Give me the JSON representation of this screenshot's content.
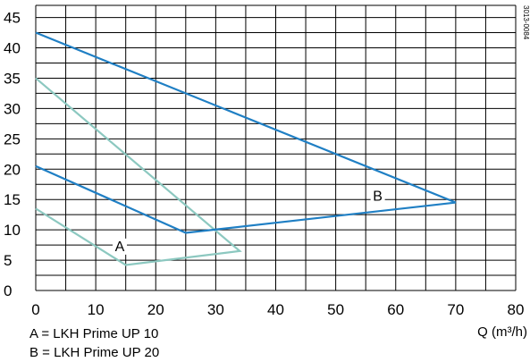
{
  "chart_data": {
    "type": "line",
    "xlabel": "Q (m³/h)",
    "ylabel": "",
    "xlim": [
      0,
      80
    ],
    "ylim": [
      0,
      47
    ],
    "x_ticks": [
      "0",
      "10",
      "20",
      "30",
      "40",
      "50",
      "60",
      "70",
      "80"
    ],
    "y_ticks": [
      "0",
      "5",
      "10",
      "15",
      "20",
      "25",
      "30",
      "35",
      "40",
      "45"
    ],
    "grid": true,
    "legend": [
      "A = LKH Prime UP 10",
      "B = LKH Prime UP 20"
    ],
    "code": "3013-0084",
    "colors": {
      "A": "#8cc8c0",
      "B": "#1f7fc4",
      "grid": "#000000"
    },
    "series": [
      {
        "name": "A",
        "points": [
          [
            0,
            13.5
          ],
          [
            15,
            4.2
          ],
          [
            34,
            6.5
          ],
          [
            0,
            35
          ]
        ]
      },
      {
        "name": "B",
        "points": [
          [
            0,
            20.5
          ],
          [
            25,
            9.5
          ],
          [
            70,
            14.5
          ],
          [
            0,
            42.5
          ]
        ]
      }
    ],
    "series_labels": [
      {
        "text": "A",
        "x": 14,
        "y": 6.5
      },
      {
        "text": "B",
        "x": 57,
        "y": 14.8
      }
    ]
  }
}
